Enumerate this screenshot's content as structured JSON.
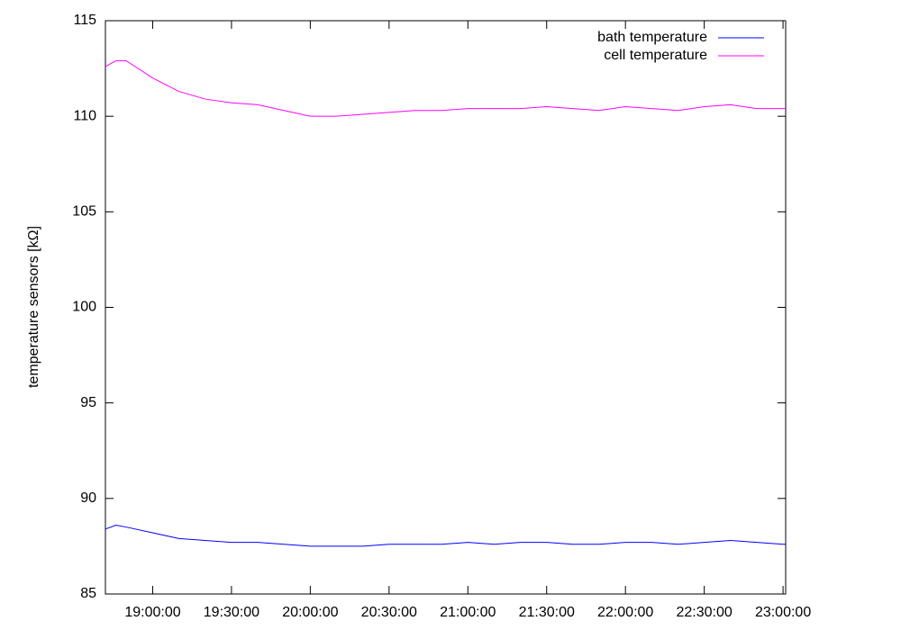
{
  "chart_data": {
    "type": "line",
    "ylabel": "temperature sensors [kΩ]",
    "x": [
      "18:42:00",
      "18:46:00",
      "18:50:00",
      "19:00:00",
      "19:10:00",
      "19:20:00",
      "19:30:00",
      "19:40:00",
      "19:50:00",
      "20:00:00",
      "20:10:00",
      "20:20:00",
      "20:30:00",
      "20:40:00",
      "20:50:00",
      "21:00:00",
      "21:10:00",
      "21:20:00",
      "21:30:00",
      "21:40:00",
      "21:50:00",
      "22:00:00",
      "22:10:00",
      "22:20:00",
      "22:30:00",
      "22:40:00",
      "22:50:00",
      "23:00:00",
      "23:01:00"
    ],
    "series": [
      {
        "name": "bath temperature",
        "color": "#0000ff",
        "values": [
          88.4,
          88.6,
          88.5,
          88.2,
          87.9,
          87.8,
          87.7,
          87.7,
          87.6,
          87.5,
          87.5,
          87.5,
          87.6,
          87.6,
          87.6,
          87.7,
          87.6,
          87.7,
          87.7,
          87.6,
          87.6,
          87.7,
          87.7,
          87.6,
          87.7,
          87.8,
          87.7,
          87.6,
          87.6
        ]
      },
      {
        "name": "cell temperature",
        "color": "#ff00ff",
        "values": [
          112.6,
          112.9,
          112.9,
          112.0,
          111.3,
          110.9,
          110.7,
          110.6,
          110.3,
          110.0,
          110.0,
          110.1,
          110.2,
          110.3,
          110.3,
          110.4,
          110.4,
          110.4,
          110.5,
          110.4,
          110.3,
          110.5,
          110.4,
          110.3,
          110.5,
          110.6,
          110.4,
          110.4,
          110.4
        ]
      }
    ],
    "xlim": [
      "18:42:00",
      "23:01:00"
    ],
    "xticks": [
      "19:00:00",
      "19:30:00",
      "20:00:00",
      "20:30:00",
      "21:00:00",
      "21:30:00",
      "22:00:00",
      "22:30:00",
      "23:00:00"
    ],
    "ylim": [
      85,
      115
    ],
    "yticks": [
      85,
      90,
      95,
      100,
      105,
      110,
      115
    ],
    "legend": "top-right",
    "grid": false
  }
}
